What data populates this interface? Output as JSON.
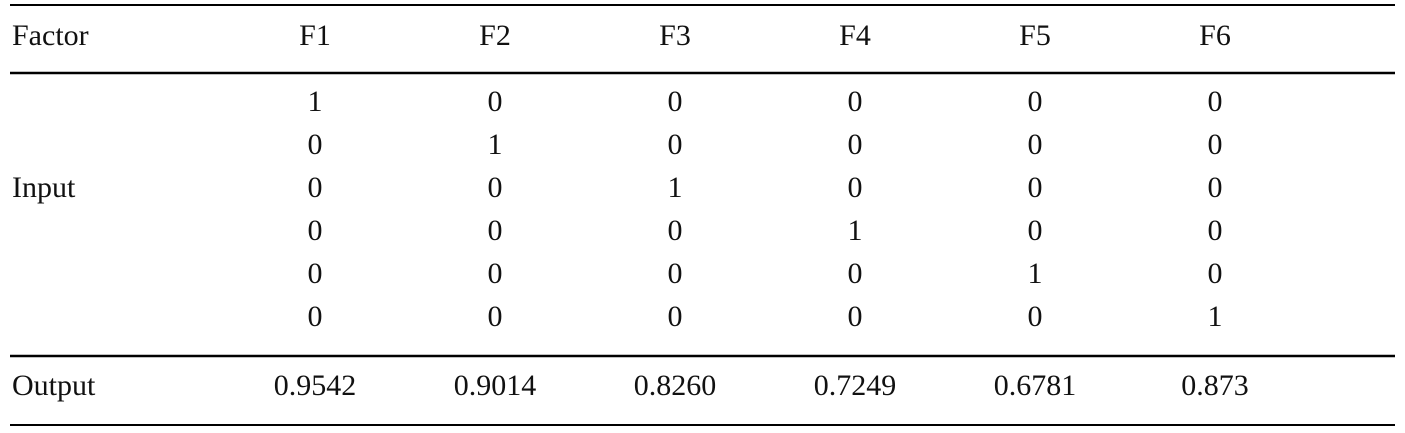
{
  "table": {
    "header": [
      "Factor",
      "F1",
      "F2",
      "F3",
      "F4",
      "F5",
      "F6"
    ],
    "input_label": "Input",
    "input_rows": [
      [
        "1",
        "0",
        "0",
        "0",
        "0",
        "0"
      ],
      [
        "0",
        "1",
        "0",
        "0",
        "0",
        "0"
      ],
      [
        "0",
        "0",
        "1",
        "0",
        "0",
        "0"
      ],
      [
        "0",
        "0",
        "0",
        "1",
        "0",
        "0"
      ],
      [
        "0",
        "0",
        "0",
        "0",
        "1",
        "0"
      ],
      [
        "0",
        "0",
        "0",
        "0",
        "0",
        "1"
      ]
    ],
    "output_label": "Output",
    "output_values": [
      "0.9542",
      "0.9014",
      "0.8260",
      "0.7249",
      "0.6781",
      "0.873"
    ]
  }
}
